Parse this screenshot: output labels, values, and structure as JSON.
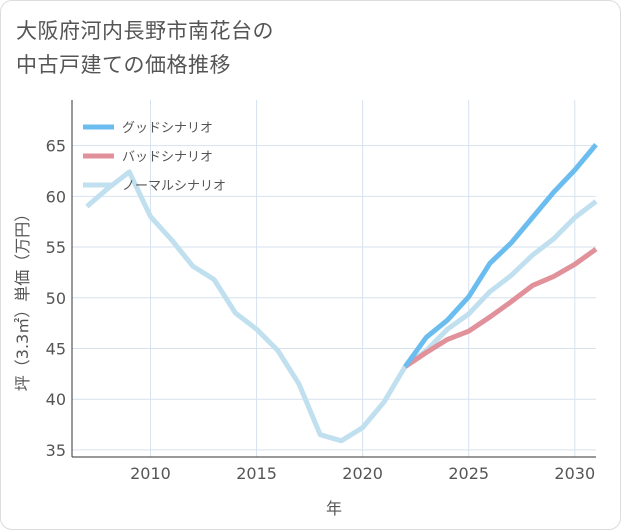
{
  "title": [
    "大阪府河内長野市南花台の",
    "中古戸建ての価格推移"
  ],
  "chart_data": {
    "type": "line",
    "xlabel": "年",
    "ylabel": "坪（3.3㎡）単価（万円）",
    "xlim": [
      2006.3,
      2031
    ],
    "ylim": [
      34.3,
      69.5
    ],
    "x_ticks": [
      2010,
      2015,
      2020,
      2025,
      2030
    ],
    "y_ticks": [
      35,
      40,
      45,
      50,
      55,
      60,
      65
    ],
    "grid": true,
    "legend_position": "top-left",
    "series": [
      {
        "name": "グッドシナリオ",
        "color": "#6cbdef",
        "x": [
          2022,
          2023,
          2024,
          2025,
          2026,
          2027,
          2028,
          2029,
          2030,
          2031
        ],
        "values": [
          43.2,
          46.1,
          47.8,
          50.1,
          53.4,
          55.4,
          57.9,
          60.4,
          62.6,
          65.1
        ]
      },
      {
        "name": "バッドシナリオ",
        "color": "#e0919a",
        "x": [
          2022,
          2023,
          2024,
          2025,
          2026,
          2027,
          2028,
          2029,
          2030,
          2031
        ],
        "values": [
          43.2,
          44.6,
          45.9,
          46.7,
          48.1,
          49.6,
          51.2,
          52.1,
          53.3,
          54.8
        ]
      },
      {
        "name": "ノーマルシナリオ",
        "color": "#c0e0ef",
        "x": [
          2007,
          2008,
          2009,
          2010,
          2011,
          2012,
          2013,
          2014,
          2015,
          2016,
          2017,
          2018,
          2019,
          2020,
          2021,
          2022,
          2023,
          2024,
          2025,
          2026,
          2027,
          2028,
          2029,
          2030,
          2031
        ],
        "values": [
          59.0,
          60.8,
          62.4,
          58.0,
          55.7,
          53.1,
          51.8,
          48.5,
          46.9,
          44.8,
          41.5,
          36.5,
          35.9,
          37.2,
          39.7,
          43.2,
          44.8,
          46.9,
          48.4,
          50.6,
          52.2,
          54.2,
          55.8,
          57.9,
          59.5
        ]
      }
    ]
  }
}
